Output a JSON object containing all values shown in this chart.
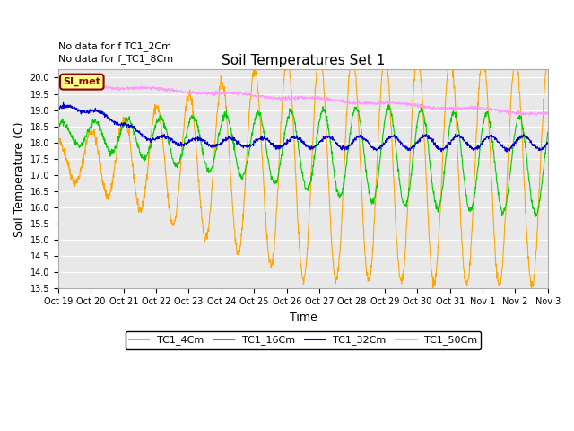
{
  "title": "Soil Temperatures Set 1",
  "xlabel": "Time",
  "ylabel": "Soil Temperature (C)",
  "ylim": [
    13.5,
    20.25
  ],
  "yticks": [
    13.5,
    14.0,
    14.5,
    15.0,
    15.5,
    16.0,
    16.5,
    17.0,
    17.5,
    18.0,
    18.5,
    19.0,
    19.5,
    20.0
  ],
  "bg_color": "#e8e8e8",
  "fig_color": "#ffffff",
  "note1": "No data for f TC1_2Cm",
  "note2": "No data for f_TC1_8Cm",
  "simet_label": "SI_met",
  "legend_entries": [
    "TC1_4Cm",
    "TC1_16Cm",
    "TC1_32Cm",
    "TC1_50Cm"
  ],
  "legend_colors": [
    "#FFA500",
    "#00CC00",
    "#0000CC",
    "#FF99FF"
  ],
  "xtick_labels": [
    "Oct 19",
    "Oct 20",
    "Oct 21",
    "Oct 22",
    "Oct 23",
    "Oct 24",
    "Oct 25",
    "Oct 26",
    "Oct 27",
    "Oct 28",
    "Oct 29",
    "Oct 30",
    "Oct 31",
    "Nov 1",
    "Nov 2",
    "Nov 3"
  ],
  "num_points": 1440,
  "start_day": 0,
  "end_day": 15
}
